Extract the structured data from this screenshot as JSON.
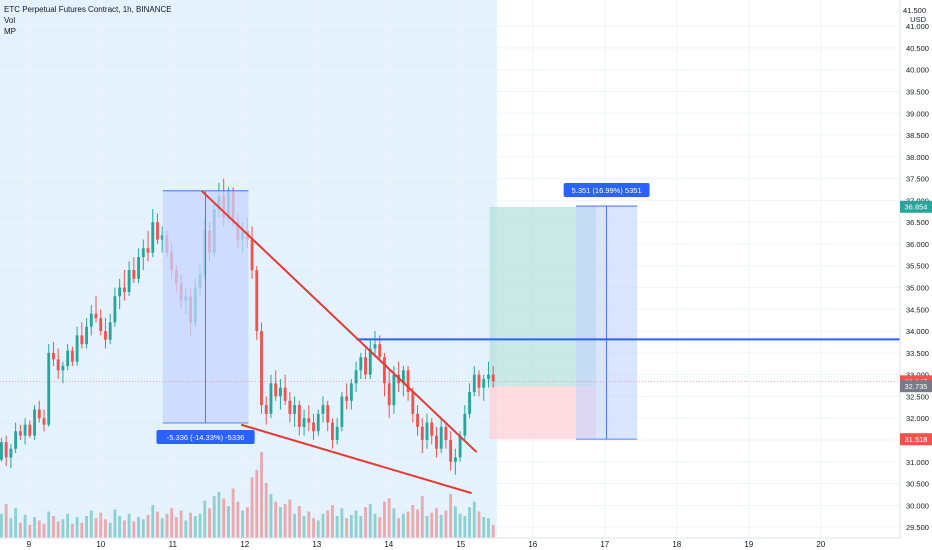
{
  "legend": {
    "symbol": "ETC Perpetual Futures Contract, 1h, BINANCE",
    "indicator1": "Vol",
    "indicator2": "MP"
  },
  "axis": {
    "currency_top": "41.500",
    "currency_unit": "USD"
  },
  "colors": {
    "up": "#26a69a",
    "down": "#ef5350",
    "trend": "#e53935",
    "resistance": "#2962ff",
    "measure_fill": "#c5d4ff",
    "shaded_session": "#e3f2fd",
    "target_zone": "#b2dfdb",
    "stop_zone": "#ffcdd2"
  },
  "chart_data": {
    "type": "candlestick",
    "y_ticks": [
      "41.000",
      "40.500",
      "40.000",
      "39.500",
      "39.000",
      "38.500",
      "38.000",
      "37.500",
      "37.000",
      "36.500",
      "36.000",
      "35.500",
      "35.000",
      "34.500",
      "34.000",
      "33.500",
      "33.000",
      "32.500",
      "32.000",
      "31.500",
      "31.000",
      "30.500",
      "30.000",
      "29.500"
    ],
    "y_tick_values": [
      41.0,
      40.5,
      40.0,
      39.5,
      39.0,
      38.5,
      38.0,
      37.5,
      37.0,
      36.5,
      36.0,
      35.5,
      35.0,
      34.5,
      34.0,
      33.5,
      33.0,
      32.5,
      32.0,
      31.5,
      31.0,
      30.5,
      30.0,
      29.5
    ],
    "ylim": [
      29.25,
      41.6
    ],
    "x_ticks": [
      "9",
      "10",
      "11",
      "12",
      "13",
      "14",
      "15",
      "16",
      "17",
      "18",
      "19",
      "20"
    ],
    "x_tick_days": [
      9,
      10,
      11,
      12,
      13,
      14,
      15,
      16,
      17,
      18,
      19,
      20
    ],
    "xlim_days": [
      8.6,
      21.1
    ],
    "price_tags": [
      {
        "label": "36.854",
        "value": 36.854,
        "color": "#26a69a"
      },
      {
        "label": "32.847",
        "value": 32.847,
        "color": "#ef5350"
      },
      {
        "label": "32.735",
        "value": 32.735,
        "color": "#787b86"
      },
      {
        "label": "31.518",
        "value": 31.518,
        "color": "#ef5350"
      }
    ],
    "current_price": 32.847,
    "shaded_session_days": [
      8.6,
      15.5
    ],
    "measure_down": {
      "label": "-5.336 (-14.33%) -5336",
      "from_day": 10.86,
      "to_day": 12.05,
      "from_price": 37.22,
      "to_price": 31.89
    },
    "measure_up": {
      "label": "5.351 (16.99%) 5351",
      "from_day": 16.6,
      "to_day": 17.45,
      "from_price": 31.52,
      "to_price": 36.87
    },
    "long_position": {
      "from_day": 15.4,
      "to_day": 16.88,
      "entry": 32.73,
      "target": 36.85,
      "stop": 31.52
    },
    "resistance_line": {
      "from_day": 13.55,
      "to_day": 21.15,
      "from_price": 33.81,
      "to_price": 33.81
    },
    "trendline_upper": {
      "from_day": 11.4,
      "to_day": 15.22,
      "from_price": 37.22,
      "to_price": 31.22
    },
    "trendline_lower": {
      "from_day": 11.95,
      "to_day": 15.15,
      "from_price": 31.85,
      "to_price": 30.28
    },
    "candles": [
      [
        31.05,
        31.55,
        31.0,
        31.45
      ],
      [
        31.45,
        31.6,
        30.9,
        31.1
      ],
      [
        31.1,
        31.4,
        30.85,
        31.3
      ],
      [
        31.3,
        31.9,
        31.2,
        31.7
      ],
      [
        31.7,
        31.85,
        31.5,
        31.6
      ],
      [
        31.6,
        32.0,
        31.4,
        31.85
      ],
      [
        31.85,
        31.95,
        31.55,
        31.6
      ],
      [
        31.6,
        32.3,
        31.5,
        32.2
      ],
      [
        32.2,
        32.4,
        31.9,
        32.0
      ],
      [
        32.0,
        32.2,
        31.7,
        31.85
      ],
      [
        31.85,
        33.7,
        31.8,
        33.5
      ],
      [
        33.5,
        33.75,
        33.2,
        33.35
      ],
      [
        33.35,
        33.6,
        32.9,
        33.1
      ],
      [
        33.1,
        33.3,
        32.8,
        33.2
      ],
      [
        33.2,
        33.7,
        33.1,
        33.55
      ],
      [
        33.55,
        33.65,
        33.2,
        33.3
      ],
      [
        33.3,
        34.1,
        33.2,
        33.9
      ],
      [
        33.9,
        34.2,
        33.6,
        33.7
      ],
      [
        33.7,
        34.3,
        33.6,
        34.1
      ],
      [
        34.1,
        34.6,
        33.9,
        34.4
      ],
      [
        34.4,
        34.8,
        34.2,
        34.3
      ],
      [
        34.3,
        34.5,
        33.9,
        34.0
      ],
      [
        34.0,
        34.3,
        33.6,
        33.8
      ],
      [
        33.8,
        34.4,
        33.7,
        34.2
      ],
      [
        34.2,
        35.0,
        34.1,
        34.8
      ],
      [
        34.8,
        35.2,
        34.5,
        35.0
      ],
      [
        35.0,
        35.4,
        34.7,
        34.9
      ],
      [
        34.9,
        35.6,
        34.8,
        35.4
      ],
      [
        35.4,
        35.7,
        35.1,
        35.2
      ],
      [
        35.2,
        35.9,
        35.1,
        35.7
      ],
      [
        35.7,
        36.1,
        35.4,
        35.9
      ],
      [
        35.9,
        36.3,
        35.6,
        35.8
      ],
      [
        35.8,
        36.8,
        35.7,
        36.5
      ],
      [
        36.5,
        36.7,
        36.0,
        36.1
      ],
      [
        36.1,
        36.4,
        35.8,
        36.2
      ],
      [
        36.2,
        36.3,
        35.7,
        35.8
      ],
      [
        35.8,
        36.0,
        35.2,
        35.4
      ],
      [
        35.4,
        35.5,
        34.9,
        35.1
      ],
      [
        35.1,
        35.3,
        34.5,
        34.7
      ],
      [
        34.7,
        35.0,
        34.4,
        34.8
      ],
      [
        34.8,
        35.0,
        33.9,
        34.2
      ],
      [
        34.2,
        35.2,
        34.1,
        35.0
      ],
      [
        35.0,
        35.5,
        34.8,
        35.3
      ],
      [
        35.3,
        36.6,
        35.2,
        36.3
      ],
      [
        36.3,
        36.5,
        35.6,
        35.8
      ],
      [
        35.8,
        37.0,
        35.7,
        36.8
      ],
      [
        36.8,
        37.4,
        36.6,
        37.1
      ],
      [
        37.1,
        37.5,
        36.4,
        36.6
      ],
      [
        36.6,
        37.3,
        36.5,
        37.2
      ],
      [
        37.2,
        37.3,
        36.4,
        36.5
      ],
      [
        36.5,
        36.7,
        35.9,
        36.1
      ],
      [
        36.1,
        36.5,
        35.8,
        36.3
      ],
      [
        36.3,
        36.6,
        35.9,
        36.1
      ],
      [
        36.1,
        36.4,
        35.2,
        35.4
      ],
      [
        35.4,
        35.5,
        33.8,
        34.0
      ],
      [
        34.0,
        34.2,
        32.1,
        32.3
      ],
      [
        32.3,
        32.5,
        31.85,
        32.1
      ],
      [
        32.1,
        33.0,
        32.0,
        32.8
      ],
      [
        32.8,
        33.1,
        32.4,
        32.5
      ],
      [
        32.5,
        32.9,
        32.2,
        32.7
      ],
      [
        32.7,
        33.0,
        32.3,
        32.4
      ],
      [
        32.4,
        32.6,
        31.9,
        32.1
      ],
      [
        32.1,
        32.5,
        31.8,
        32.3
      ],
      [
        32.3,
        32.4,
        31.6,
        31.8
      ],
      [
        31.8,
        32.2,
        31.6,
        32.0
      ],
      [
        32.0,
        32.3,
        31.7,
        31.9
      ],
      [
        31.9,
        32.1,
        31.5,
        31.7
      ],
      [
        31.7,
        32.2,
        31.6,
        32.1
      ],
      [
        32.1,
        32.5,
        31.9,
        32.3
      ],
      [
        32.3,
        32.4,
        31.7,
        31.9
      ],
      [
        31.9,
        32.0,
        31.3,
        31.5
      ],
      [
        31.5,
        32.0,
        31.4,
        31.8
      ],
      [
        31.8,
        32.6,
        31.7,
        32.5
      ],
      [
        32.5,
        32.8,
        32.2,
        32.4
      ],
      [
        32.4,
        32.9,
        32.2,
        32.8
      ],
      [
        32.8,
        33.3,
        32.6,
        33.1
      ],
      [
        33.1,
        33.5,
        32.9,
        33.4
      ],
      [
        33.4,
        33.6,
        32.9,
        33.0
      ],
      [
        33.0,
        33.8,
        32.9,
        33.6
      ],
      [
        33.6,
        34.0,
        33.4,
        33.7
      ],
      [
        33.7,
        33.9,
        33.3,
        33.4
      ],
      [
        33.4,
        33.5,
        32.5,
        32.8
      ],
      [
        32.8,
        33.1,
        32.0,
        32.3
      ],
      [
        32.3,
        33.2,
        32.1,
        33.0
      ],
      [
        33.0,
        33.3,
        32.6,
        32.8
      ],
      [
        32.8,
        33.2,
        32.5,
        33.1
      ],
      [
        33.1,
        33.2,
        32.4,
        32.6
      ],
      [
        32.6,
        32.7,
        31.9,
        32.1
      ],
      [
        32.1,
        32.3,
        31.6,
        31.8
      ],
      [
        31.8,
        32.0,
        31.2,
        31.5
      ],
      [
        31.5,
        32.1,
        31.3,
        31.9
      ],
      [
        31.9,
        32.0,
        31.4,
        31.6
      ],
      [
        31.6,
        31.8,
        31.1,
        31.3
      ],
      [
        31.3,
        32.0,
        31.2,
        31.8
      ],
      [
        31.8,
        31.9,
        31.3,
        31.5
      ],
      [
        31.5,
        31.7,
        30.8,
        31.0
      ],
      [
        31.0,
        31.3,
        30.7,
        31.1
      ],
      [
        31.1,
        31.7,
        31.0,
        31.6
      ],
      [
        31.6,
        32.3,
        31.5,
        32.1
      ],
      [
        32.1,
        32.8,
        32.0,
        32.6
      ],
      [
        32.6,
        33.2,
        32.5,
        33.0
      ],
      [
        33.0,
        33.1,
        32.5,
        32.7
      ],
      [
        32.7,
        33.0,
        32.4,
        32.9
      ],
      [
        32.9,
        33.3,
        32.7,
        33.0
      ],
      [
        33.0,
        33.2,
        32.7,
        32.85
      ]
    ],
    "volumes": [
      0.22,
      0.31,
      0.18,
      0.27,
      0.14,
      0.21,
      0.12,
      0.19,
      0.16,
      0.13,
      0.24,
      0.2,
      0.15,
      0.17,
      0.22,
      0.13,
      0.19,
      0.14,
      0.2,
      0.25,
      0.18,
      0.23,
      0.17,
      0.14,
      0.26,
      0.2,
      0.16,
      0.22,
      0.15,
      0.19,
      0.17,
      0.21,
      0.3,
      0.24,
      0.18,
      0.22,
      0.27,
      0.19,
      0.25,
      0.16,
      0.23,
      0.2,
      0.22,
      0.34,
      0.27,
      0.38,
      0.42,
      0.36,
      0.29,
      0.45,
      0.33,
      0.25,
      0.28,
      0.55,
      0.62,
      0.78,
      0.5,
      0.4,
      0.33,
      0.28,
      0.31,
      0.35,
      0.22,
      0.29,
      0.2,
      0.24,
      0.18,
      0.16,
      0.22,
      0.25,
      0.3,
      0.2,
      0.27,
      0.18,
      0.21,
      0.25,
      0.2,
      0.28,
      0.31,
      0.22,
      0.19,
      0.33,
      0.36,
      0.27,
      0.18,
      0.22,
      0.24,
      0.3,
      0.26,
      0.38,
      0.2,
      0.23,
      0.27,
      0.21,
      0.25,
      0.4,
      0.29,
      0.22,
      0.2,
      0.28,
      0.33,
      0.24,
      0.19,
      0.18,
      0.12
    ]
  }
}
